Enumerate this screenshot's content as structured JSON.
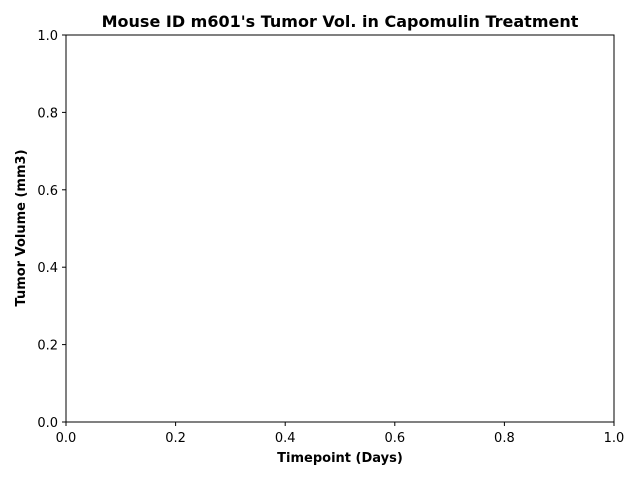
{
  "chart_data": {
    "type": "line",
    "title": "Mouse ID m601's Tumor Vol. in Capomulin Treatment",
    "xlabel": "Timepoint (Days)",
    "ylabel": "Tumor Volume (mm3)",
    "xlim": [
      0.0,
      1.0
    ],
    "ylim": [
      0.0,
      1.0
    ],
    "x_ticks": [
      "0.0",
      "0.2",
      "0.4",
      "0.6",
      "0.8",
      "1.0"
    ],
    "y_ticks": [
      "0.0",
      "0.2",
      "0.4",
      "0.6",
      "0.8",
      "1.0"
    ],
    "grid": false,
    "series": []
  },
  "colors": {
    "axis": "#000000",
    "background": "#ffffff"
  }
}
